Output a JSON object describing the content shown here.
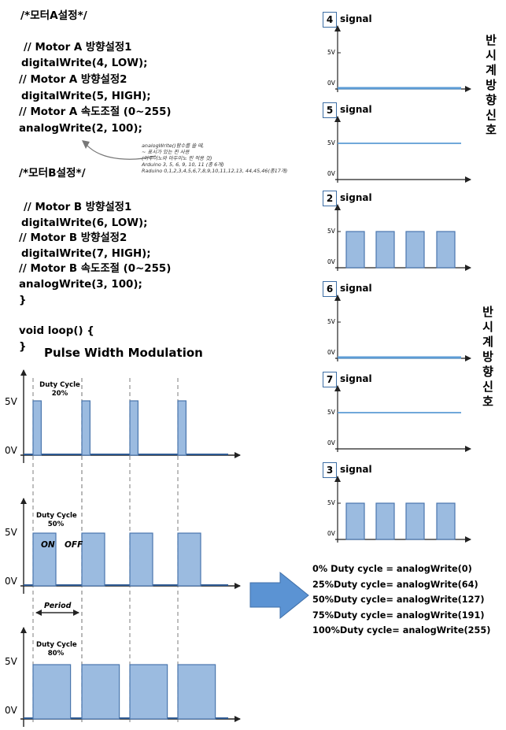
{
  "code": {
    "motor_a_header": "/*모터A설정*/",
    "motor_a_lines": [
      "// Motor A 방향설정1",
      "digitalWrite(4, LOW);",
      "// Motor A 방향설정2",
      "digitalWrite(5, HIGH);",
      "// Motor A 속도조절 (0~255)",
      "analogWrite(2, 100);"
    ],
    "motor_b_header": "/*모터B설정*/",
    "motor_b_lines": [
      "// Motor B 방향설정1",
      "digitalWrite(6, LOW);",
      "// Motor B 방향설정2",
      "digitalWrite(7, HIGH);",
      "// Motor B 속도조절 (0~255)",
      "analogWrite(3, 100);",
      "}"
    ],
    "loop_lines": [
      "void loop() {",
      "}"
    ]
  },
  "handwritten_note": [
    "analogWrite()함수를 쓸 때,",
    "~ 표시가 있는 핀 사용",
    "(아두이노와 아두이노 핀 적용 것)",
    "Arduino 3, 5, 6, 9, 10, 11 (총 6개)",
    "Raduino 0,1,2,3,4,5,6,7,8,9,10,11,12,13, 44,45,46(총17개)"
  ],
  "pwm": {
    "title": "Pulse Width Modulation",
    "v_high": "5V",
    "v_low": "0V",
    "panels": [
      {
        "duty_label_line1": "Duty Cycle",
        "duty_label_line2": "20%",
        "duty": 0.2
      },
      {
        "duty_label_line1": "Duty Cycle",
        "duty_label_line2": "50%",
        "duty": 0.5
      },
      {
        "duty_label_line1": "Duty Cycle",
        "duty_label_line2": "80%",
        "duty": 0.8
      }
    ],
    "on_label": "ON",
    "off_label": "OFF",
    "period_label": "Period"
  },
  "signals": [
    {
      "pin": "4",
      "label": "signal",
      "kind": "low"
    },
    {
      "pin": "5",
      "label": "signal",
      "kind": "high"
    },
    {
      "pin": "2",
      "label": "signal",
      "kind": "pwm"
    },
    {
      "pin": "6",
      "label": "signal",
      "kind": "low"
    },
    {
      "pin": "7",
      "label": "signal",
      "kind": "high"
    },
    {
      "pin": "3",
      "label": "signal",
      "kind": "pwm"
    }
  ],
  "signal_axis": {
    "v_high": "5V",
    "v_low": "0V"
  },
  "reverse_label_top": "반시계방향신호",
  "reverse_label_bottom": "반시계방향신호",
  "duty_table": [
    "0% Duty cycle = analogWrite(0)",
    "25%Duty cycle= analogWrite(64)",
    "50%Duty cycle= analogWrite(127)",
    "75%Duty cycle= analogWrite(191)",
    "100%Duty cycle= analogWrite(255)"
  ],
  "colors": {
    "bar_fill": "#9bbbe0",
    "bar_stroke": "#4a76ad",
    "signal_line": "#5b9bd5",
    "arrow_fill": "#5b93d3"
  }
}
